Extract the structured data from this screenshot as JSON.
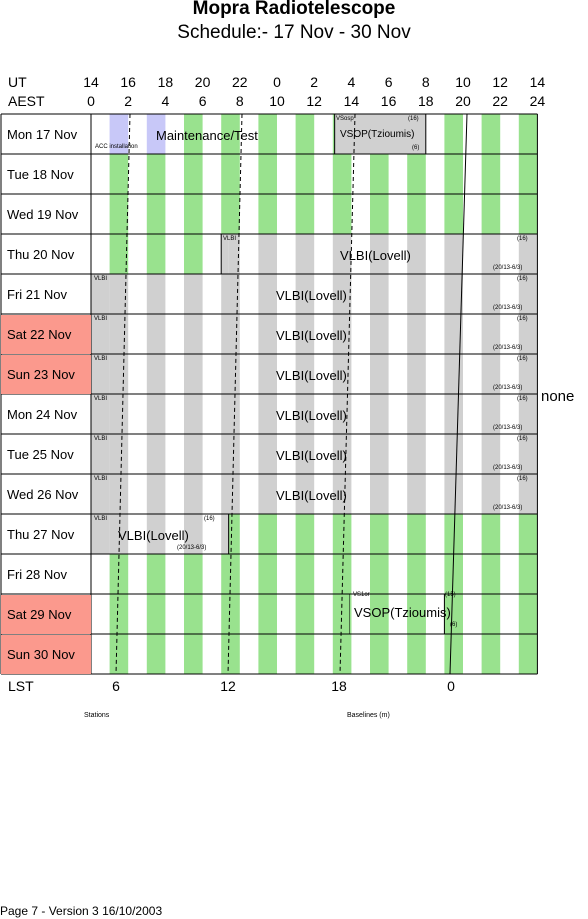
{
  "title": "Mopra Radiotelescope",
  "subtitle": "Schedule:- 17 Nov - 30 Nov",
  "header": {
    "ut_label": "UT",
    "aest_label": "AEST",
    "ut_ticks": [
      "14",
      "16",
      "18",
      "20",
      "22",
      "0",
      "2",
      "4",
      "6",
      "8",
      "10",
      "12",
      "14"
    ],
    "aest_ticks": [
      "0",
      "2",
      "4",
      "6",
      "8",
      "10",
      "12",
      "14",
      "16",
      "18",
      "20",
      "22",
      "24"
    ]
  },
  "days": [
    {
      "label": "Mon  17 Nov",
      "weekend": false
    },
    {
      "label": "Tue   18 Nov",
      "weekend": false
    },
    {
      "label": "Wed  19 Nov",
      "weekend": false
    },
    {
      "label": "Thu   20 Nov",
      "weekend": false
    },
    {
      "label": "Fri    21 Nov",
      "weekend": false
    },
    {
      "label": "Sat   22 Nov",
      "weekend": true
    },
    {
      "label": "Sun   23 Nov",
      "weekend": true
    },
    {
      "label": "Mon  24 Nov",
      "weekend": false
    },
    {
      "label": "Tue   25 Nov",
      "weekend": false
    },
    {
      "label": "Wed  26 Nov",
      "weekend": false
    },
    {
      "label": "Thu   27 Nov",
      "weekend": false
    },
    {
      "label": "Fri    28 Nov",
      "weekend": false
    },
    {
      "label": "Sat   29 Nov",
      "weekend": true
    },
    {
      "label": "Sun   30 Nov",
      "weekend": true
    }
  ],
  "blocks": {
    "maintenance": "Maintenance/Test",
    "acc": "ACC installation",
    "vsop_mon": "VSOP(Tzioumis)",
    "vsop_mon_code": "VSosp",
    "vsop_mon_16": "(16)",
    "vsop_mon_6": "(6)",
    "vlbi_code": "VLBI",
    "vlbi_label": "VLBI(Lovell)",
    "n16": "(16)",
    "stations": "(20/13-6/3)",
    "vsop_sat": "VSOP(Tzioumis)",
    "vsop_sat_code": "VS1or",
    "vsop_sat_16": "(15)",
    "vsop_sat_6": "(6)"
  },
  "side_note": "none",
  "lst": {
    "label": "LST",
    "ticks": [
      "6",
      "12",
      "18",
      "0"
    ]
  },
  "footer_labels": {
    "stations": "Stations",
    "baselines": "Baselines (m)"
  },
  "page_footer": "Page 7 - Version 3  16/10/2003",
  "colors": {
    "green": "#99e28e",
    "grey": "#d0d0d0",
    "lavender": "#c8c8f8",
    "weekend": "#fb998d"
  }
}
